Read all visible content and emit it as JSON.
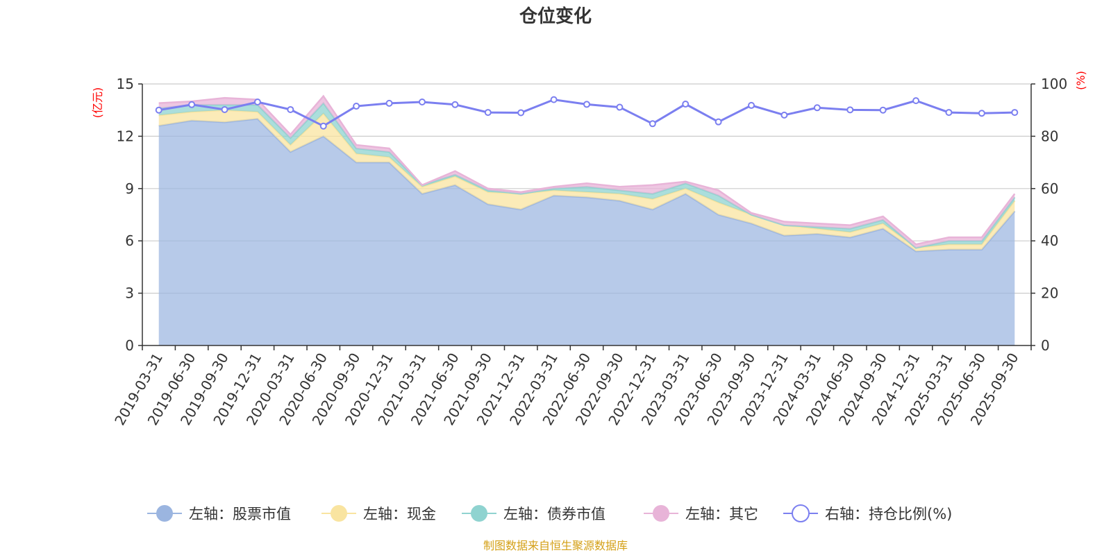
{
  "chart_data": {
    "type": "area",
    "title": "仓位变化",
    "source": "制图数据来自恒生聚源数据库",
    "left_axis": {
      "unit": "(亿元)",
      "ylim": [
        0,
        15
      ],
      "ticks": [
        0,
        3,
        6,
        9,
        12,
        15
      ]
    },
    "right_axis": {
      "unit": "(%)",
      "ylim": [
        0,
        100
      ],
      "ticks": [
        0,
        20,
        40,
        60,
        80,
        100
      ]
    },
    "categories": [
      "2019-03-31",
      "2019-06-30",
      "2019-09-30",
      "2019-12-31",
      "2020-03-31",
      "2020-06-30",
      "2020-09-30",
      "2020-12-31",
      "2021-03-31",
      "2021-06-30",
      "2021-09-30",
      "2021-12-31",
      "2022-03-31",
      "2022-06-30",
      "2022-09-30",
      "2022-12-31",
      "2023-03-31",
      "2023-06-30",
      "2023-09-30",
      "2023-12-31",
      "2024-03-31",
      "2024-06-30",
      "2024-09-30",
      "2024-12-31",
      "2025-03-31",
      "2025-06-30",
      "2025-09-30"
    ],
    "series": [
      {
        "name": "左轴：股票市值",
        "axis": "left",
        "color": "#9bb5e0",
        "values": [
          12.6,
          12.9,
          12.8,
          13.0,
          11.1,
          12.0,
          10.5,
          10.5,
          8.7,
          9.2,
          8.1,
          7.8,
          8.6,
          8.5,
          8.3,
          7.8,
          8.7,
          7.5,
          7.0,
          6.3,
          6.4,
          6.2,
          6.7,
          5.4,
          5.5,
          5.5,
          7.7
        ]
      },
      {
        "name": "左轴：现金",
        "axis": "left",
        "color": "#f9e4a0",
        "values": [
          0.6,
          0.5,
          0.7,
          0.4,
          0.4,
          1.3,
          0.5,
          0.3,
          0.4,
          0.5,
          0.7,
          0.9,
          0.3,
          0.3,
          0.4,
          0.6,
          0.3,
          0.7,
          0.5,
          0.6,
          0.3,
          0.3,
          0.3,
          0.2,
          0.3,
          0.3,
          0.6
        ]
      },
      {
        "name": "左轴：债券市值",
        "axis": "left",
        "color": "#8fd3d0",
        "values": [
          0.4,
          0.4,
          0.3,
          0.4,
          0.4,
          0.6,
          0.3,
          0.3,
          0.1,
          0.1,
          0.1,
          0.0,
          0.1,
          0.3,
          0.2,
          0.3,
          0.3,
          0.4,
          0.0,
          0.0,
          0.1,
          0.2,
          0.2,
          0.0,
          0.2,
          0.2,
          0.2
        ]
      },
      {
        "name": "左轴：其它",
        "axis": "left",
        "color": "#e8b4d8",
        "values": [
          0.3,
          0.2,
          0.4,
          0.3,
          0.2,
          0.4,
          0.2,
          0.2,
          0.0,
          0.2,
          0.1,
          0.1,
          0.1,
          0.2,
          0.2,
          0.5,
          0.1,
          0.3,
          0.1,
          0.2,
          0.2,
          0.2,
          0.2,
          0.2,
          0.2,
          0.2,
          0.2
        ]
      },
      {
        "name": "右轴：持仓比例(%)",
        "axis": "right",
        "color": "#7b7ff0",
        "values": [
          90.0,
          92.1,
          90.2,
          93.1,
          90.2,
          83.9,
          91.5,
          92.6,
          93.1,
          92.1,
          89.1,
          89.0,
          94.0,
          92.2,
          91.1,
          84.8,
          92.3,
          85.5,
          91.8,
          88.1,
          90.9,
          90.1,
          90.0,
          93.6,
          89.1,
          88.8,
          89.1
        ]
      }
    ],
    "legend_position": "bottom",
    "grid": true
  }
}
